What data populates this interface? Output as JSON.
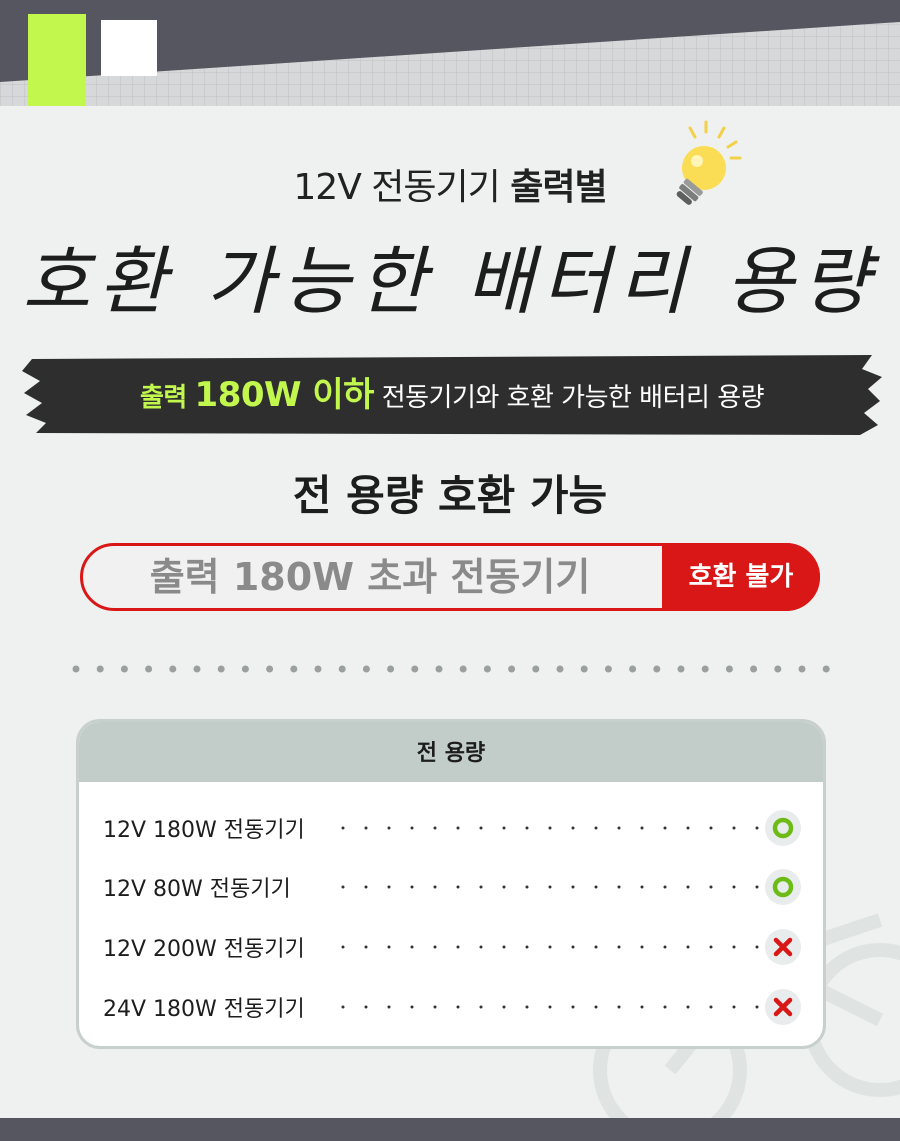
{
  "header": {
    "subtitle_normal": "12V 전동기기",
    "subtitle_bold": "출력별",
    "title": "호환 가능한 배터리 용량"
  },
  "banner": {
    "prefix": "출력",
    "highlight": "180W 이하",
    "suffix": "전동기기와 호환 가능한 배터리 용량"
  },
  "compat_heading": "전 용량 호환 가능",
  "warning": {
    "text": "출력 180W 초과 전동기기",
    "badge": "호환 불가"
  },
  "table": {
    "header": "전 용량",
    "rows": [
      {
        "label": "12V 180W 전동기기",
        "status": "compatible",
        "icon": "circle-o-icon"
      },
      {
        "label": "12V 80W 전동기기",
        "status": "compatible",
        "icon": "circle-o-icon"
      },
      {
        "label": "12V 200W 전동기기",
        "status": "incompatible",
        "icon": "x-icon"
      },
      {
        "label": "24V 180W 전동기기",
        "status": "incompatible",
        "icon": "x-icon"
      }
    ]
  },
  "colors": {
    "accent_green": "#c2f84e",
    "accent_red": "#d91717",
    "dark": "#2e2e2e",
    "band": "#55565f"
  }
}
